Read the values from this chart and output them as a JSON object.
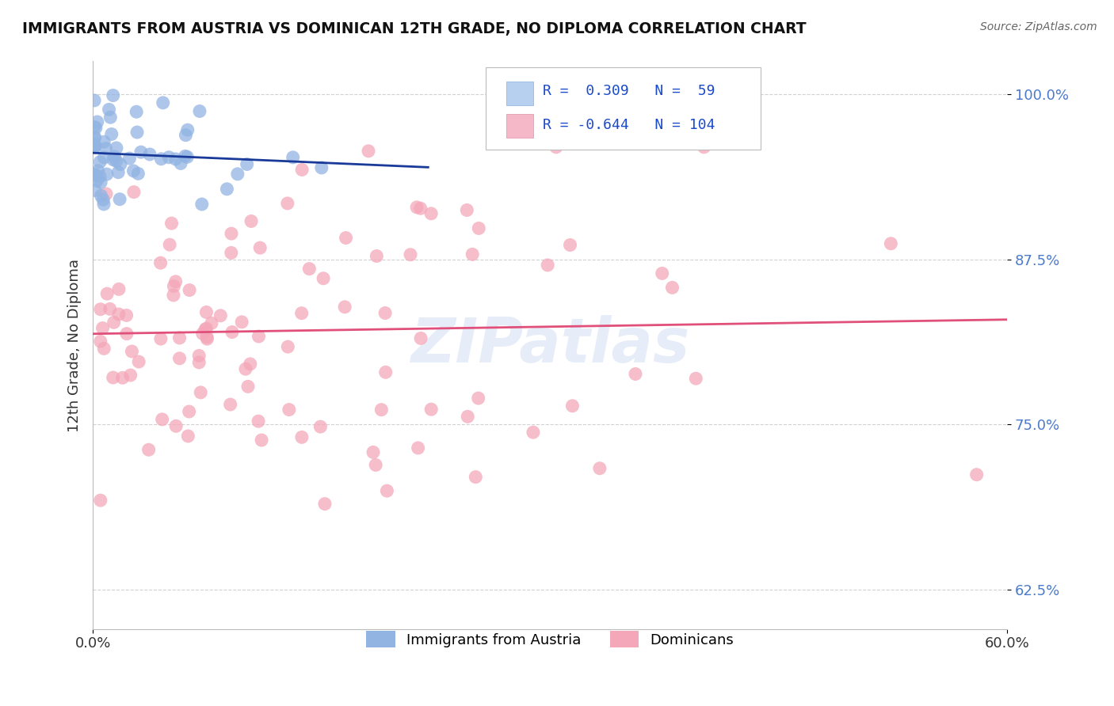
{
  "title": "IMMIGRANTS FROM AUSTRIA VS DOMINICAN 12TH GRADE, NO DIPLOMA CORRELATION CHART",
  "source": "Source: ZipAtlas.com",
  "ylabel": "12th Grade, No Diploma",
  "austria_R": 0.309,
  "austria_N": 59,
  "dominican_R": -0.644,
  "dominican_N": 104,
  "xlim": [
    0.0,
    0.6
  ],
  "ylim": [
    0.595,
    1.025
  ],
  "ytick_positions": [
    0.625,
    0.75,
    0.875,
    1.0
  ],
  "ytick_labels": [
    "62.5%",
    "75.0%",
    "87.5%",
    "100.0%"
  ],
  "austria_color": "#92b4e3",
  "austria_line_color": "#1a3a99",
  "dominican_color": "#f4a7b9",
  "dominican_line_color": "#e0507a",
  "legend_box_color_austria": "#b8d0f0",
  "legend_box_color_dominican": "#f4b8c8",
  "watermark": "ZIPatlas",
  "background_color": "#ffffff",
  "austria_seed": 777,
  "dominican_seed": 888
}
